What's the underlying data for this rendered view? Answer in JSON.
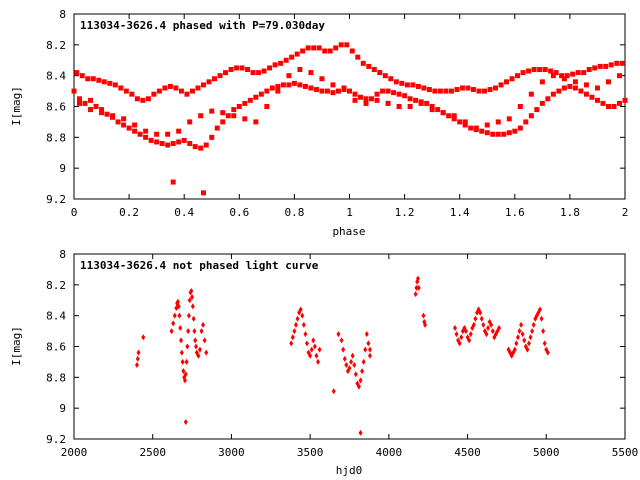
{
  "colors": {
    "points": "#ff0000",
    "axes": "#000000",
    "background": "#ffffff"
  },
  "chart_data": [
    {
      "type": "scatter",
      "title": "113034-3626.4 phased with P=79.030day",
      "xlabel": "phase",
      "ylabel": "I[mag]",
      "xlim": [
        0,
        2
      ],
      "ylim": [
        9.2,
        8
      ],
      "y_inverted": true,
      "xticks": [
        "0",
        "0.2",
        "0.4",
        "0.6",
        "0.8",
        "1",
        "1.2",
        "1.4",
        "1.6",
        "1.8",
        "2"
      ],
      "yticks": [
        "8",
        "8.2",
        "8.4",
        "8.6",
        "8.8",
        "9",
        "9.2"
      ],
      "marker": "filled-star",
      "series": [
        {
          "x": [
            0.0,
            0.02,
            0.04,
            0.06,
            0.08,
            0.1,
            0.12,
            0.14,
            0.16,
            0.18,
            0.2,
            0.22,
            0.24,
            0.26,
            0.28,
            0.3,
            0.32,
            0.34,
            0.36,
            0.38,
            0.4,
            0.42,
            0.44,
            0.46,
            0.48,
            0.5,
            0.52,
            0.54,
            0.56,
            0.58,
            0.6,
            0.62,
            0.64,
            0.66,
            0.68,
            0.7,
            0.72,
            0.74,
            0.76,
            0.78,
            0.8,
            0.82,
            0.84,
            0.86,
            0.88,
            0.9,
            0.92,
            0.94,
            0.96,
            0.98,
            1.0,
            1.02,
            1.04,
            1.06,
            1.08,
            1.1,
            1.12,
            1.14,
            1.16,
            1.18,
            1.2,
            1.22,
            1.24,
            1.26,
            1.28,
            1.3,
            1.32,
            1.34,
            1.36,
            1.38,
            1.4,
            1.42,
            1.44,
            1.46,
            1.48,
            1.5,
            1.52,
            1.54,
            1.56,
            1.58,
            1.6,
            1.62,
            1.64,
            1.66,
            1.68,
            1.7,
            1.72,
            1.74,
            1.76,
            1.78,
            1.8,
            1.82,
            1.84,
            1.86,
            1.88,
            1.9,
            1.92,
            1.94,
            1.96,
            1.98,
            2.0,
            0.01,
            0.03,
            0.05,
            0.07,
            0.09,
            0.11,
            0.13,
            0.15,
            0.17,
            0.19,
            0.21,
            0.23,
            0.25,
            0.27,
            0.29,
            0.31,
            0.33,
            0.35,
            0.37,
            0.39,
            0.41,
            0.43,
            0.45,
            0.47,
            0.49,
            0.51,
            0.53,
            0.55,
            0.57,
            0.59,
            0.61,
            0.63,
            0.65,
            0.67,
            0.69,
            0.71,
            0.73,
            0.75,
            0.77,
            0.79,
            0.81,
            0.83,
            0.85,
            0.87,
            0.89,
            0.91,
            0.93,
            0.95,
            0.97,
            0.99,
            1.01,
            1.03,
            1.05,
            1.07,
            1.09,
            1.11,
            1.13,
            1.15,
            1.17,
            1.19,
            1.21,
            1.23,
            1.25,
            1.27,
            1.29,
            1.31,
            1.33,
            1.35,
            1.37,
            1.39,
            1.41,
            1.43,
            1.45,
            1.47,
            1.49,
            1.51,
            1.53,
            1.55,
            1.57,
            1.59,
            1.61,
            1.63,
            1.65,
            1.67,
            1.69,
            1.71,
            1.73,
            1.75,
            1.77,
            1.79,
            1.81,
            1.83,
            1.85,
            1.87,
            1.89,
            1.91,
            1.93,
            1.95,
            1.97,
            1.99,
            0.02,
            0.06,
            0.1,
            0.14,
            0.18,
            0.22,
            0.26,
            0.3,
            0.34,
            0.38,
            0.42,
            0.46,
            0.5,
            0.54,
            0.58,
            0.62,
            0.66,
            0.7,
            0.74,
            0.78,
            0.82,
            0.86,
            0.9,
            0.94,
            0.98,
            1.02,
            1.06,
            1.1,
            1.14,
            1.18,
            1.22,
            1.26,
            1.3,
            1.34,
            1.38,
            1.42,
            1.46,
            1.5,
            1.54,
            1.58,
            1.62,
            1.66,
            1.7,
            1.74,
            1.78,
            1.82,
            1.86,
            1.9,
            1.94,
            1.98,
            0.36,
            0.47
          ],
          "y": [
            8.5,
            8.55,
            8.58,
            8.56,
            8.6,
            8.62,
            8.65,
            8.67,
            8.7,
            8.72,
            8.74,
            8.76,
            8.78,
            8.8,
            8.82,
            8.83,
            8.84,
            8.85,
            8.84,
            8.83,
            8.82,
            8.84,
            8.86,
            8.87,
            8.85,
            8.8,
            8.74,
            8.7,
            8.66,
            8.62,
            8.6,
            8.58,
            8.56,
            8.54,
            8.52,
            8.5,
            8.48,
            8.47,
            8.46,
            8.46,
            8.45,
            8.46,
            8.47,
            8.48,
            8.49,
            8.5,
            8.5,
            8.51,
            8.5,
            8.49,
            8.5,
            8.52,
            8.54,
            8.55,
            8.55,
            8.52,
            8.5,
            8.5,
            8.51,
            8.52,
            8.53,
            8.55,
            8.56,
            8.57,
            8.58,
            8.6,
            8.62,
            8.64,
            8.66,
            8.68,
            8.7,
            8.72,
            8.74,
            8.75,
            8.76,
            8.77,
            8.78,
            8.78,
            8.78,
            8.77,
            8.76,
            8.74,
            8.7,
            8.66,
            8.62,
            8.58,
            8.55,
            8.52,
            8.5,
            8.48,
            8.47,
            8.48,
            8.5,
            8.52,
            8.54,
            8.56,
            8.58,
            8.6,
            8.6,
            8.58,
            8.56,
            8.38,
            8.4,
            8.42,
            8.42,
            8.43,
            8.44,
            8.45,
            8.46,
            8.48,
            8.5,
            8.52,
            8.55,
            8.56,
            8.55,
            8.52,
            8.5,
            8.48,
            8.47,
            8.48,
            8.5,
            8.52,
            8.5,
            8.48,
            8.46,
            8.44,
            8.42,
            8.4,
            8.38,
            8.36,
            8.35,
            8.35,
            8.36,
            8.38,
            8.38,
            8.37,
            8.35,
            8.33,
            8.32,
            8.3,
            8.28,
            8.26,
            8.24,
            8.22,
            8.22,
            8.22,
            8.24,
            8.24,
            8.22,
            8.2,
            8.2,
            8.24,
            8.28,
            8.32,
            8.34,
            8.36,
            8.38,
            8.4,
            8.42,
            8.44,
            8.45,
            8.46,
            8.46,
            8.47,
            8.48,
            8.49,
            8.5,
            8.5,
            8.5,
            8.5,
            8.49,
            8.48,
            8.48,
            8.49,
            8.5,
            8.5,
            8.49,
            8.48,
            8.46,
            8.44,
            8.42,
            8.4,
            8.38,
            8.37,
            8.36,
            8.36,
            8.36,
            8.37,
            8.38,
            8.4,
            8.4,
            8.39,
            8.38,
            8.38,
            8.36,
            8.35,
            8.34,
            8.34,
            8.33,
            8.32,
            8.32,
            8.58,
            8.62,
            8.64,
            8.66,
            8.68,
            8.72,
            8.76,
            8.78,
            8.78,
            8.76,
            8.7,
            8.66,
            8.63,
            8.64,
            8.66,
            8.68,
            8.7,
            8.6,
            8.5,
            8.4,
            8.36,
            8.38,
            8.42,
            8.46,
            8.48,
            8.56,
            8.58,
            8.56,
            8.58,
            8.6,
            8.6,
            8.58,
            8.62,
            8.64,
            8.66,
            8.7,
            8.74,
            8.72,
            8.7,
            8.68,
            8.6,
            8.52,
            8.44,
            8.4,
            8.42,
            8.44,
            8.46,
            8.48,
            8.44,
            8.4,
            9.09,
            9.16
          ]
        }
      ]
    },
    {
      "type": "scatter",
      "title": "113034-3626.4 not phased light curve",
      "xlabel": "hjd0",
      "ylabel": "I[mag]",
      "xlim": [
        2000,
        5500
      ],
      "ylim": [
        9.2,
        8
      ],
      "y_inverted": true,
      "xticks": [
        "2000",
        "2500",
        "3000",
        "3500",
        "4000",
        "4500",
        "5000",
        "5500"
      ],
      "yticks": [
        "8",
        "8.2",
        "8.4",
        "8.6",
        "8.8",
        "9",
        "9.2"
      ],
      "marker": "filled-diamond",
      "series": [
        {
          "x": [
            2400,
            2405,
            2410,
            2440,
            2620,
            2630,
            2640,
            2650,
            2655,
            2660,
            2665,
            2670,
            2675,
            2680,
            2685,
            2690,
            2695,
            2700,
            2705,
            2710,
            2715,
            2720,
            2725,
            2730,
            2735,
            2740,
            2745,
            2750,
            2755,
            2760,
            2765,
            2770,
            2775,
            2780,
            2790,
            2800,
            2810,
            2820,
            2830,
            2840,
            3380,
            3390,
            3400,
            3410,
            3420,
            3430,
            3440,
            3450,
            3460,
            3470,
            3480,
            3490,
            3500,
            3510,
            3520,
            3530,
            3540,
            3550,
            3560,
            3650,
            3680,
            3700,
            3710,
            3720,
            3730,
            3740,
            3750,
            3760,
            3770,
            3780,
            3790,
            3800,
            3810,
            3820,
            3830,
            3840,
            3850,
            3860,
            3870,
            3880,
            4170,
            4175,
            4180,
            4185,
            4190,
            4220,
            4225,
            4230,
            4420,
            4430,
            4440,
            4450,
            4460,
            4470,
            4480,
            4490,
            4500,
            4510,
            4520,
            4530,
            4540,
            4550,
            4560,
            4570,
            4580,
            4590,
            4600,
            4610,
            4620,
            4630,
            4640,
            4650,
            4660,
            4670,
            4680,
            4690,
            4700,
            4760,
            4770,
            4780,
            4790,
            4800,
            4810,
            4820,
            4830,
            4840,
            4850,
            4860,
            4870,
            4880,
            4890,
            4900,
            4910,
            4920,
            4930,
            4940,
            4950,
            4960,
            4970,
            4980,
            4990,
            5000,
            5010,
            2710,
            3820,
            3880
          ],
          "y": [
            8.72,
            8.68,
            8.64,
            8.54,
            8.5,
            8.45,
            8.4,
            8.35,
            8.32,
            8.31,
            8.34,
            8.4,
            8.48,
            8.56,
            8.64,
            8.7,
            8.76,
            8.8,
            8.82,
            8.78,
            8.7,
            8.6,
            8.5,
            8.4,
            8.3,
            8.25,
            8.24,
            8.28,
            8.34,
            8.42,
            8.5,
            8.56,
            8.6,
            8.64,
            8.66,
            8.62,
            8.5,
            8.46,
            8.56,
            8.64,
            8.58,
            8.54,
            8.5,
            8.46,
            8.42,
            8.38,
            8.36,
            8.4,
            8.46,
            8.52,
            8.58,
            8.64,
            8.66,
            8.62,
            8.56,
            8.6,
            8.66,
            8.7,
            8.62,
            8.89,
            8.52,
            8.56,
            8.62,
            8.68,
            8.72,
            8.76,
            8.74,
            8.7,
            8.66,
            8.72,
            8.78,
            8.84,
            8.86,
            8.82,
            8.76,
            8.7,
            8.62,
            8.52,
            8.58,
            8.66,
            8.26,
            8.22,
            8.18,
            8.16,
            8.22,
            8.4,
            8.44,
            8.46,
            8.48,
            8.52,
            8.56,
            8.58,
            8.54,
            8.5,
            8.48,
            8.5,
            8.54,
            8.56,
            8.52,
            8.48,
            8.46,
            8.42,
            8.38,
            8.36,
            8.38,
            8.42,
            8.46,
            8.5,
            8.52,
            8.48,
            8.44,
            8.46,
            8.5,
            8.54,
            8.52,
            8.5,
            8.48,
            8.62,
            8.64,
            8.66,
            8.64,
            8.62,
            8.58,
            8.54,
            8.5,
            8.46,
            8.52,
            8.56,
            8.6,
            8.62,
            8.58,
            8.54,
            8.5,
            8.46,
            8.42,
            8.4,
            8.38,
            8.36,
            8.42,
            8.5,
            8.58,
            8.62,
            8.64,
            9.09,
            9.16,
            8.62
          ]
        }
      ]
    }
  ]
}
